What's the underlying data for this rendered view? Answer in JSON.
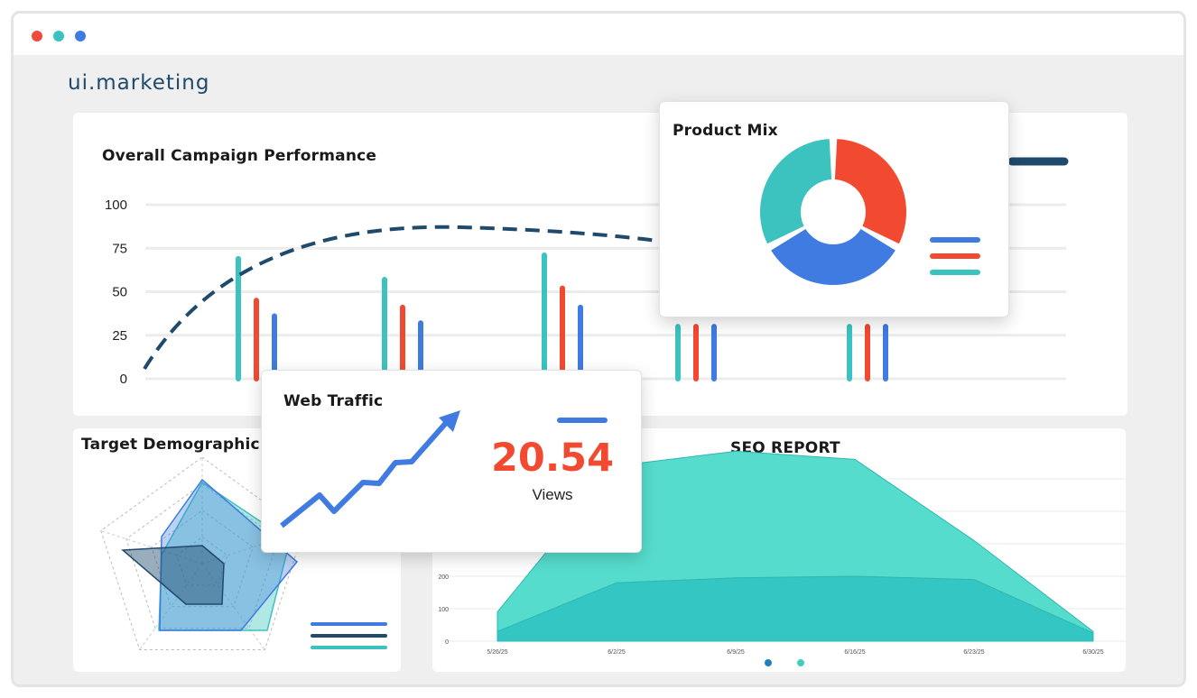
{
  "window": {
    "controls": [
      {
        "name": "close",
        "color": "#f04a3a"
      },
      {
        "name": "minimize",
        "color": "#39c2be"
      },
      {
        "name": "maximize",
        "color": "#3f7be0"
      }
    ]
  },
  "brand": {
    "logo_text": "ui.marketing"
  },
  "colors": {
    "teal": "#3cc3bf",
    "red": "#f24a31",
    "blue": "#3f7be0",
    "navy": "#1f4a6b"
  },
  "campaign": {
    "title": "Overall Campaign Performance",
    "chart_data": {
      "type": "bar",
      "yticks": [
        "100",
        "75",
        "50",
        "25",
        "0"
      ],
      "ylim": [
        0,
        100
      ],
      "groups": 5,
      "series": [
        {
          "color": "teal",
          "values": [
            69,
            57,
            71,
            30,
            30
          ]
        },
        {
          "color": "red",
          "values": [
            45,
            41,
            52,
            30,
            30
          ]
        },
        {
          "color": "blue",
          "values": [
            36,
            32,
            41,
            30,
            30
          ]
        }
      ],
      "trend_line": {
        "style": "dashed",
        "color": "navy"
      }
    }
  },
  "product_mix": {
    "title": "Product Mix",
    "chart_data": {
      "type": "pie",
      "slices": [
        {
          "color": "red",
          "value": 33
        },
        {
          "color": "blue",
          "value": 34
        },
        {
          "color": "teal",
          "value": 33
        }
      ]
    },
    "legend_colors": [
      "blue",
      "red",
      "teal"
    ]
  },
  "web_traffic": {
    "title": "Web Traffic",
    "value": "20.54",
    "unit": "Views"
  },
  "demographic": {
    "title": "Target Demographic",
    "chart_data": {
      "type": "radar",
      "series_colors": [
        "blue",
        "navy",
        "teal"
      ]
    }
  },
  "seo": {
    "title": "SEO REPORT",
    "chart_data": {
      "type": "area",
      "x": [
        "5/26/25",
        "6/2/25",
        "6/9/25",
        "6/16/25",
        "6/23/25",
        "6/30/25"
      ],
      "yticks": [
        "200",
        "100",
        "0"
      ],
      "series": [
        {
          "color": "teal",
          "values": [
            90,
            540,
            585,
            560,
            310,
            30
          ]
        },
        {
          "color": "tealdark",
          "values": [
            30,
            180,
            195,
            200,
            190,
            25
          ]
        }
      ]
    },
    "legend_colors": [
      "#1f7fc0",
      "#3cd0c4"
    ]
  }
}
